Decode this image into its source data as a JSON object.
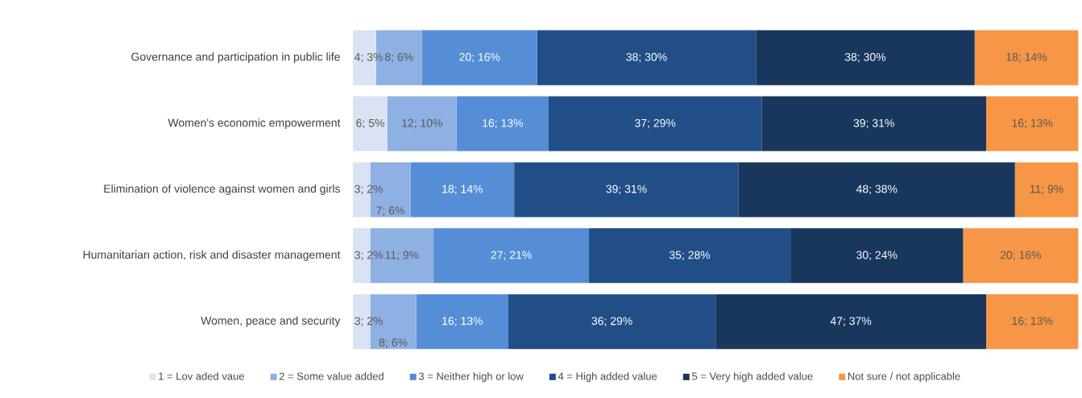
{
  "chart_data": {
    "type": "bar",
    "orientation": "horizontal",
    "stacked": true,
    "legend": "bottom",
    "xlim": [
      0,
      126
    ],
    "categories": [
      "Governance and participation in public life",
      "Women's economic empowerment",
      "Elimination of violence against women and girls",
      "Humanitarian action, risk and disaster management",
      "Women, peace and security"
    ],
    "series": [
      {
        "name": "1 = Lov aded vaue",
        "color": "#dae3f3",
        "values": [
          4,
          6,
          3,
          3,
          3
        ],
        "value_labels": [
          "4; 3%",
          "6; 5%",
          "3; 2%",
          "3; 2%",
          "3; 2%"
        ]
      },
      {
        "name": "2 = Some value added",
        "color": "#8eb0e2",
        "values": [
          8,
          12,
          7,
          11,
          8
        ],
        "value_labels": [
          "8; 6%",
          "12; 10%",
          "7; 6%",
          "11; 9%",
          "8; 6%"
        ]
      },
      {
        "name": "3 = Neither high or low",
        "color": "#558ed6",
        "values": [
          20,
          16,
          18,
          27,
          16
        ],
        "value_labels": [
          "20; 16%",
          "16; 13%",
          "18; 14%",
          "27; 21%",
          "16; 13%"
        ]
      },
      {
        "name": "4 = High added value",
        "color": "#214e87",
        "values": [
          38,
          37,
          39,
          35,
          36
        ],
        "value_labels": [
          "38; 30%",
          "37; 29%",
          "39; 31%",
          "35; 28%",
          "36; 29%"
        ]
      },
      {
        "name": "5 = Very high added value",
        "color": "#19365d",
        "values": [
          38,
          39,
          48,
          30,
          47
        ],
        "value_labels": [
          "38; 30%",
          "39; 31%",
          "48; 38%",
          "30; 24%",
          "47; 37%"
        ]
      },
      {
        "name": "Not sure / not applicable",
        "color": "#f69646",
        "values": [
          18,
          16,
          11,
          20,
          16
        ],
        "value_labels": [
          "18; 14%",
          "16; 13%",
          "11; 9%",
          "20; 16%",
          "16; 13%"
        ]
      }
    ]
  }
}
